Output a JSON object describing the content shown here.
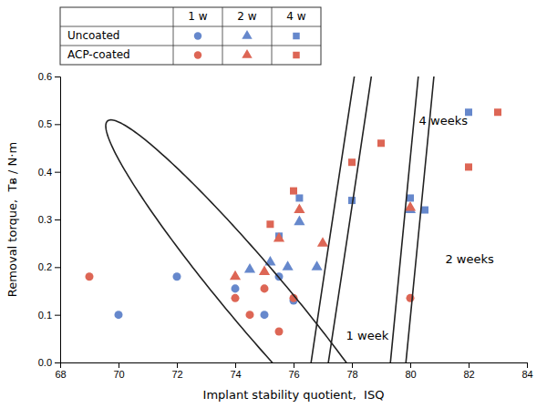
{
  "chart_data": {
    "type": "scatter",
    "xlabel": "Implant stability quotient,  ISQ",
    "ylabel": "Removal torque,  Tᴃ / N·m",
    "xlim": [
      68,
      84
    ],
    "ylim": [
      0,
      0.6
    ],
    "xticks": [
      68,
      70,
      72,
      74,
      76,
      78,
      80,
      82,
      84
    ],
    "yticks": [
      {
        "value": 0,
        "label": "0.0"
      },
      0.1,
      0.2,
      0.3,
      0.4,
      0.5,
      0.6
    ],
    "grid": false,
    "legend": "top",
    "series": [
      {
        "name": "Uncoated",
        "period": "1 w",
        "color": "#6688CC",
        "marker": "circle",
        "x": [
          70,
          72,
          74,
          75,
          75.5,
          76
        ],
        "values": [
          0.1,
          0.18,
          0.155,
          0.1,
          0.18,
          0.13
        ]
      },
      {
        "name": "Uncoated",
        "period": "2 w",
        "color": "#6688CC",
        "marker": "triangle",
        "x": [
          74.5,
          75.2,
          75.8,
          76.2,
          76.8,
          80
        ],
        "values": [
          0.195,
          0.21,
          0.2,
          0.295,
          0.2,
          0.32
        ]
      },
      {
        "name": "Uncoated",
        "period": "4 w",
        "color": "#6688CC",
        "marker": "square",
        "x": [
          75.5,
          76.2,
          78.0,
          80.0,
          80.5,
          82.0
        ],
        "values": [
          0.265,
          0.345,
          0.34,
          0.345,
          0.32,
          0.525
        ]
      },
      {
        "name": "ACP-coated",
        "period": "1 w",
        "color": "#DD6655",
        "marker": "circle",
        "x": [
          69,
          74,
          74.5,
          75,
          75.5,
          76,
          80
        ],
        "values": [
          0.18,
          0.135,
          0.1,
          0.155,
          0.065,
          0.135,
          0.135
        ]
      },
      {
        "name": "ACP-coated",
        "period": "2 w",
        "color": "#DD6655",
        "marker": "triangle",
        "x": [
          74.0,
          75.0,
          75.5,
          76.2,
          77.0,
          80.0
        ],
        "values": [
          0.18,
          0.19,
          0.26,
          0.32,
          0.25,
          0.325
        ]
      },
      {
        "name": "ACP-coated",
        "period": "4 w",
        "color": "#DD6655",
        "marker": "square",
        "x": [
          75.2,
          76.0,
          78.0,
          79.0,
          82.0,
          83.0
        ],
        "values": [
          0.29,
          0.36,
          0.42,
          0.46,
          0.41,
          0.525
        ]
      }
    ],
    "ellipses": [
      {
        "cx": 74.8,
        "cy": 0.13,
        "width": 10.5,
        "height": 0.195,
        "angle": -4
      },
      {
        "cx": 77.5,
        "cy": 0.245,
        "width": 8.5,
        "height": 0.225,
        "angle": 22
      },
      {
        "cx": 80.2,
        "cy": 0.385,
        "width": 9.5,
        "height": 0.285,
        "angle": 32
      }
    ],
    "annotations": [
      {
        "text": "1 week",
        "x": 77.8,
        "y": 0.055
      },
      {
        "text": "2 weeks",
        "x": 81.2,
        "y": 0.215
      },
      {
        "text": "4 weeks",
        "x": 80.3,
        "y": 0.505
      }
    ]
  }
}
